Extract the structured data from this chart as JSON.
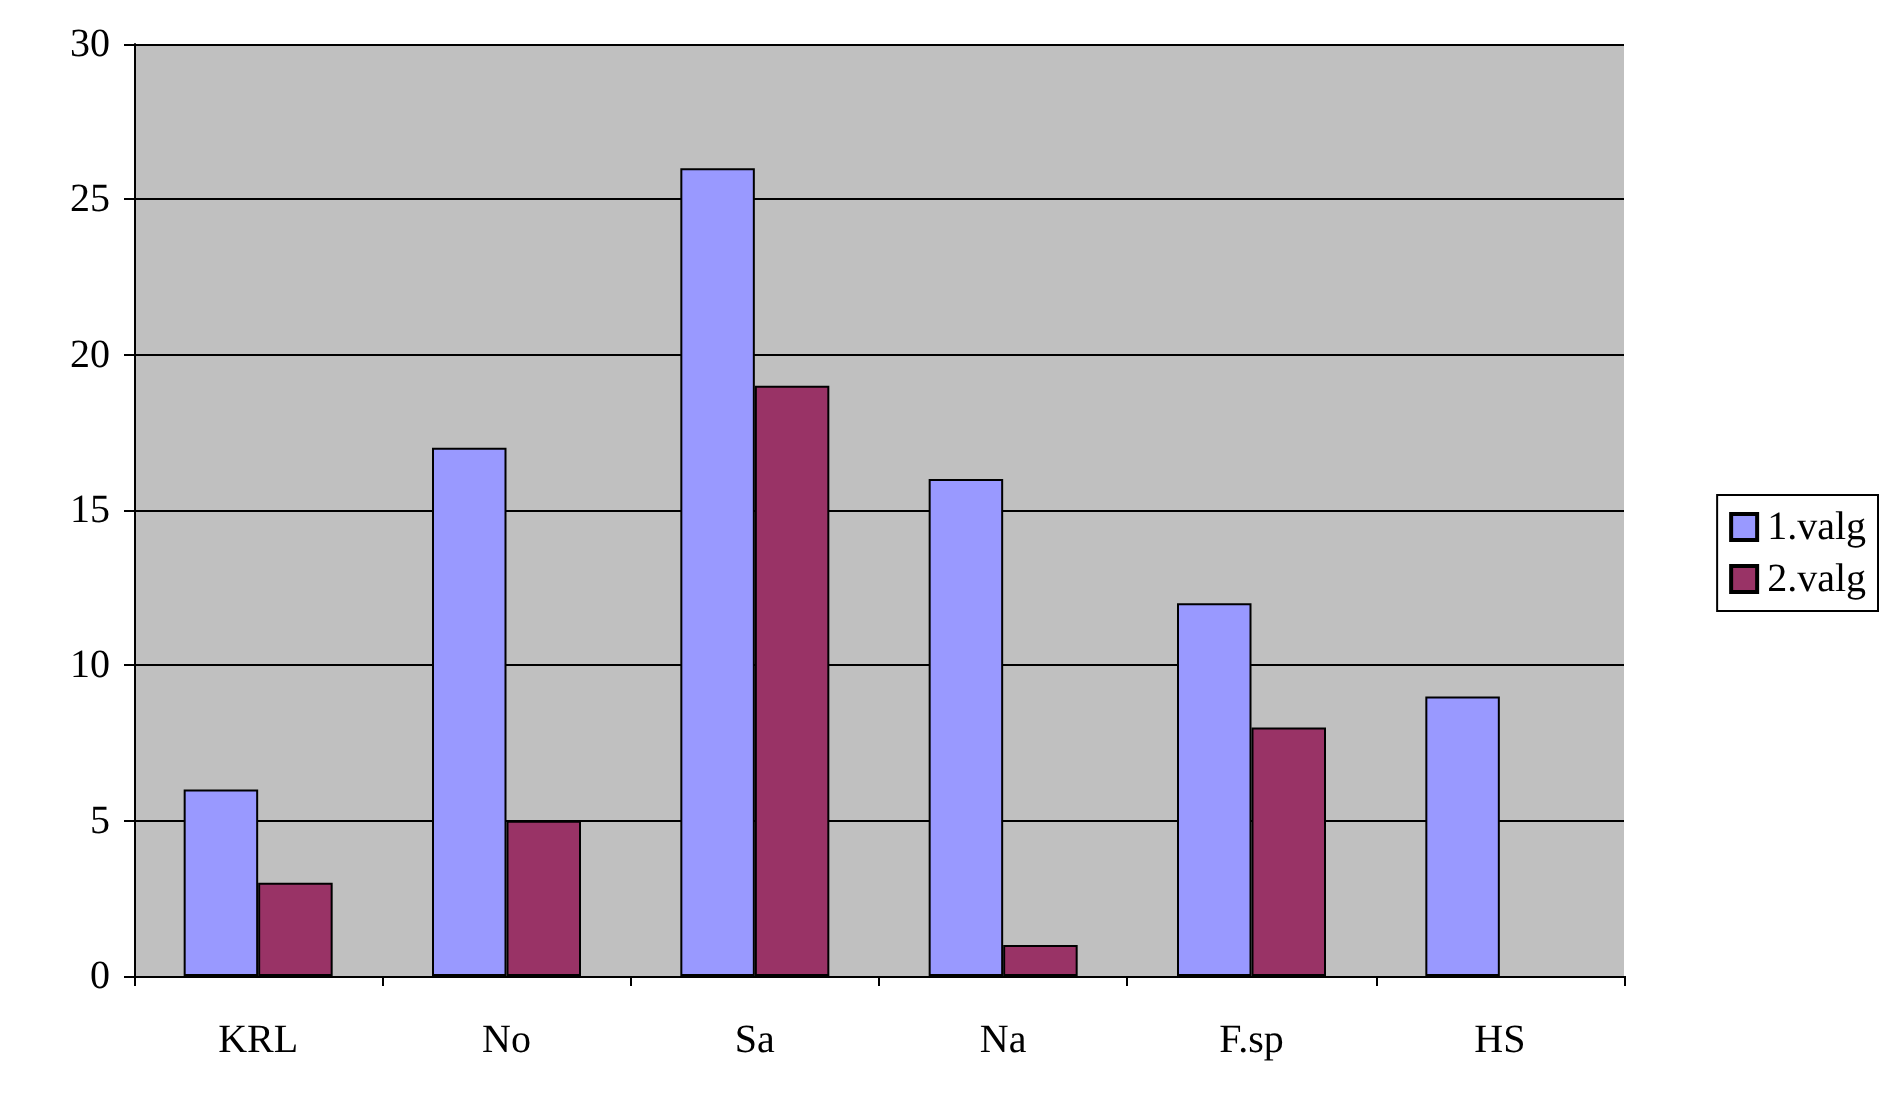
{
  "chart_data": {
    "type": "bar",
    "categories": [
      "KRL",
      "No",
      "Sa",
      "Na",
      "F.sp",
      "HS"
    ],
    "series": [
      {
        "name": "1.valg",
        "color": "#9999ff",
        "values": [
          6,
          17,
          26,
          16,
          12,
          9
        ]
      },
      {
        "name": "2.valg",
        "color": "#993366",
        "values": [
          3,
          5,
          19,
          1,
          8,
          null
        ]
      }
    ],
    "ylim": [
      0,
      30
    ],
    "yticks": [
      0,
      5,
      10,
      15,
      20,
      25,
      30
    ],
    "grid": "y",
    "legend": "right"
  }
}
